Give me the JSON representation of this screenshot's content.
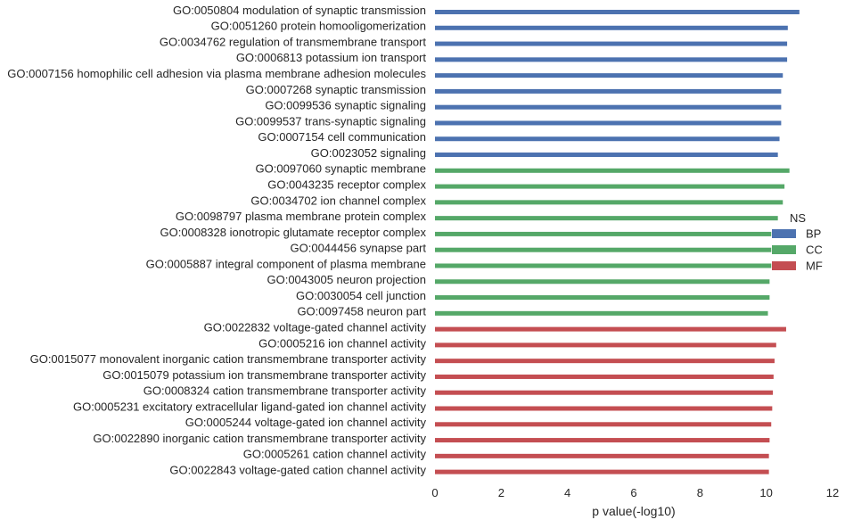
{
  "chart_data": {
    "type": "bar",
    "orientation": "horizontal",
    "title": "",
    "xlabel": "p value(-log10)",
    "ylabel": "",
    "xlim": [
      0,
      12
    ],
    "xticks": [
      "0",
      "2",
      "4",
      "6",
      "8",
      "10",
      "12"
    ],
    "grid": false,
    "legend": {
      "title": "NS",
      "placement": "right",
      "entries": [
        {
          "label": "BP",
          "color": "#4c72b0"
        },
        {
          "label": "CC",
          "color": "#55a868"
        },
        {
          "label": "MF",
          "color": "#c44e52"
        }
      ]
    },
    "categories": [
      "GO:0050804 modulation of synaptic transmission",
      "GO:0051260 protein homooligomerization",
      "GO:0034762 regulation of transmembrane transport",
      "GO:0006813 potassium ion transport",
      "GO:0007156 homophilic cell adhesion via plasma membrane adhesion molecules",
      "GO:0007268 synaptic transmission",
      "GO:0099536 synaptic signaling",
      "GO:0099537 trans-synaptic signaling",
      "GO:0007154 cell communication",
      "GO:0023052 signaling",
      "GO:0097060 synaptic membrane",
      "GO:0043235 receptor complex",
      "GO:0034702 ion channel complex",
      "GO:0098797 plasma membrane protein complex",
      "GO:0008328 ionotropic glutamate receptor complex",
      "GO:0044456 synapse part",
      "GO:0005887 integral component of plasma membrane",
      "GO:0043005 neuron projection",
      "GO:0030054 cell junction",
      "GO:0097458 neuron part",
      "GO:0022832 voltage-gated channel activity",
      "GO:0005216 ion channel activity",
      "GO:0015077 monovalent inorganic cation transmembrane transporter activity",
      "GO:0015079 potassium ion transmembrane transporter activity",
      "GO:0008324 cation transmembrane transporter activity",
      "GO:0005231 excitatory extracellular ligand-gated ion channel activity",
      "GO:0005244 voltage-gated ion channel activity",
      "GO:0022890 inorganic cation transmembrane transporter activity",
      "GO:0005261 cation channel activity",
      "GO:0022843 voltage-gated cation channel activity"
    ],
    "groups": [
      "BP",
      "BP",
      "BP",
      "BP",
      "BP",
      "BP",
      "BP",
      "BP",
      "BP",
      "BP",
      "CC",
      "CC",
      "CC",
      "CC",
      "CC",
      "CC",
      "CC",
      "CC",
      "CC",
      "CC",
      "MF",
      "MF",
      "MF",
      "MF",
      "MF",
      "MF",
      "MF",
      "MF",
      "MF",
      "MF"
    ],
    "values": [
      11.0,
      10.65,
      10.63,
      10.63,
      10.5,
      10.45,
      10.45,
      10.45,
      10.4,
      10.35,
      10.7,
      10.55,
      10.5,
      10.35,
      10.15,
      10.15,
      10.15,
      10.1,
      10.1,
      10.05,
      10.6,
      10.3,
      10.25,
      10.22,
      10.2,
      10.18,
      10.15,
      10.1,
      10.08,
      10.08
    ]
  }
}
